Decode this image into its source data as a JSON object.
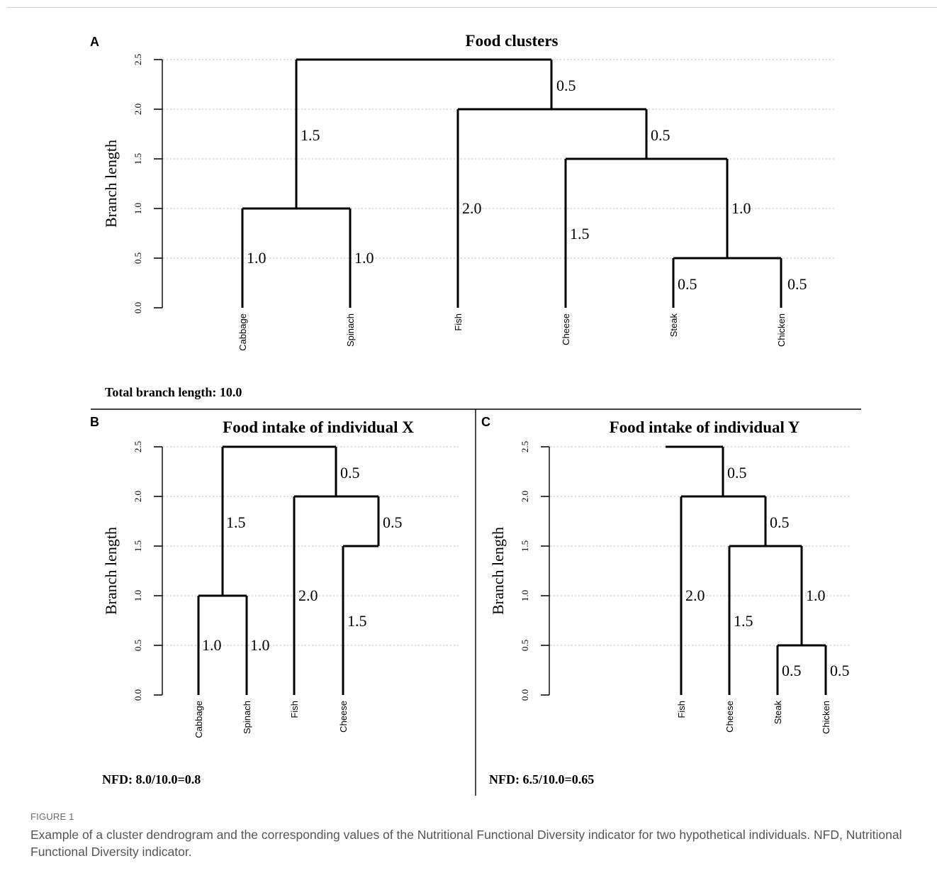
{
  "figure": {
    "label": "FIGURE 1",
    "caption": "Example of a cluster dendrogram and the corresponding values of the Nutritional Functional Diversity indicator for two hypothetical individuals. NFD, Nutritional Functional Diversity indicator."
  },
  "panels": {
    "a": {
      "letter": "A",
      "title": "Food clusters",
      "ylabel": "Branch length",
      "ticks": [
        "0.0",
        "0.5",
        "1.0",
        "1.5",
        "2.0",
        "2.5"
      ],
      "ylim": [
        0,
        2.5
      ],
      "leaves": [
        "Cabbage",
        "Spinach",
        "Fish",
        "Cheese",
        "Steak",
        "Chicken"
      ],
      "branch_labels": [
        "0.5",
        "1.5",
        "0.5",
        "1.0",
        "1.0",
        "2.0",
        "1.5",
        "1.0",
        "0.5",
        "0.5"
      ],
      "footer": "Total branch length: 10.0"
    },
    "b": {
      "letter": "B",
      "title": "Food intake of individual X",
      "ylabel": "Branch length",
      "ticks": [
        "0.0",
        "0.5",
        "1.0",
        "1.5",
        "2.0",
        "2.5"
      ],
      "ylim": [
        0,
        2.5
      ],
      "leaves": [
        "Cabbage",
        "Spinach",
        "Fish",
        "Cheese"
      ],
      "branch_labels": [
        "0.5",
        "1.5",
        "0.5",
        "1.0",
        "1.0",
        "2.0",
        "1.5"
      ],
      "footer": "NFD: 8.0/10.0=0.8"
    },
    "c": {
      "letter": "C",
      "title": "Food intake of individual Y",
      "ylabel": "Branch length",
      "ticks": [
        "0.0",
        "0.5",
        "1.0",
        "1.5",
        "2.0",
        "2.5"
      ],
      "ylim": [
        0,
        2.5
      ],
      "leaves": [
        "Fish",
        "Cheese",
        "Steak",
        "Chicken"
      ],
      "branch_labels": [
        "0.5",
        "0.5",
        "2.0",
        "1.5",
        "1.0",
        "0.5",
        "0.5"
      ],
      "footer": "NFD: 6.5/10.0=0.65"
    }
  },
  "colors": {
    "line": "#000000",
    "grid": "#bdbdbd",
    "caption": "#555555"
  }
}
